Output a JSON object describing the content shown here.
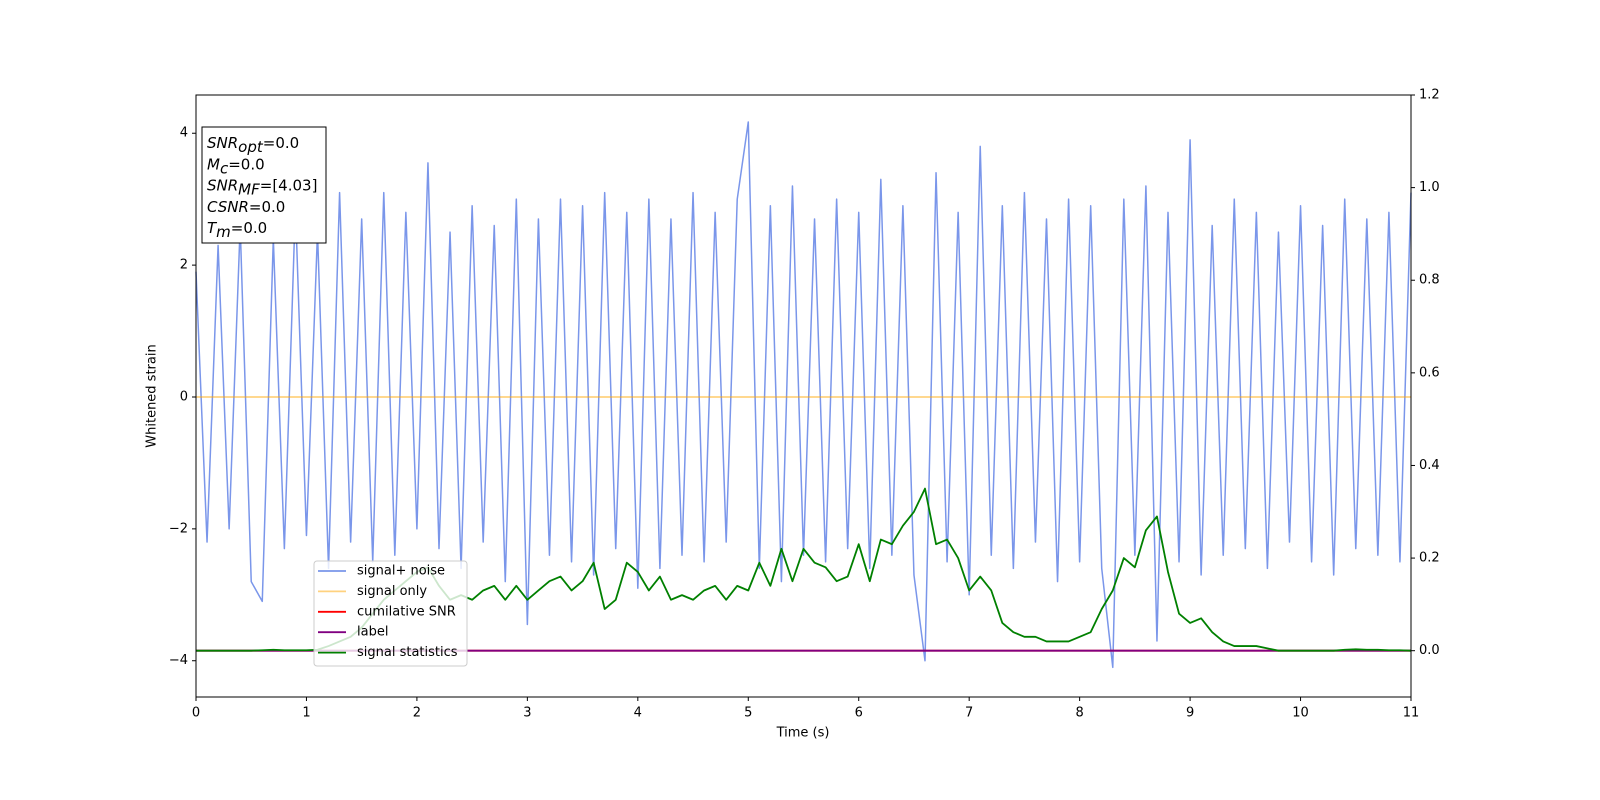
{
  "chart_data": {
    "type": "line",
    "xlabel": "Time (s)",
    "ylabel": "Whitened strain",
    "x": [
      0,
      0.1,
      0.2,
      0.3,
      0.4,
      0.5,
      0.6,
      0.7,
      0.8,
      0.9,
      1,
      1.1,
      1.2,
      1.3,
      1.4,
      1.5,
      1.6,
      1.7,
      1.8,
      1.9,
      2,
      2.1,
      2.2,
      2.3,
      2.4,
      2.5,
      2.6,
      2.7,
      2.8,
      2.9,
      3,
      3.1,
      3.2,
      3.3,
      3.4,
      3.5,
      3.6,
      3.7,
      3.8,
      3.9,
      4,
      4.1,
      4.2,
      4.3,
      4.4,
      4.5,
      4.6,
      4.7,
      4.8,
      4.9,
      5,
      5.1,
      5.2,
      5.3,
      5.4,
      5.5,
      5.6,
      5.7,
      5.8,
      5.9,
      6,
      6.1,
      6.2,
      6.3,
      6.4,
      6.5,
      6.6,
      6.7,
      6.8,
      6.9,
      7,
      7.1,
      7.2,
      7.3,
      7.4,
      7.5,
      7.6,
      7.7,
      7.8,
      7.9,
      8,
      8.1,
      8.2,
      8.3,
      8.4,
      8.5,
      8.6,
      8.7,
      8.8,
      8.9,
      9,
      9.1,
      9.2,
      9.3,
      9.4,
      9.5,
      9.6,
      9.7,
      9.8,
      9.9,
      10,
      10.1,
      10.2,
      10.3,
      10.4,
      10.5,
      10.6,
      10.7,
      10.8,
      10.9,
      11
    ],
    "series": [
      {
        "name": "signal+ noise",
        "color": "#4169e1",
        "alpha": 0.7,
        "values": [
          1.9,
          -2.2,
          2.3,
          -2.0,
          2.6,
          -2.8,
          -3.1,
          2.4,
          -2.3,
          2.9,
          -2.1,
          2.5,
          -2.6,
          3.1,
          -2.2,
          2.7,
          -2.5,
          3.1,
          -2.4,
          2.8,
          -2.0,
          3.55,
          -2.3,
          2.5,
          -2.6,
          2.9,
          -2.2,
          2.6,
          -2.8,
          3.0,
          -3.45,
          2.7,
          -2.4,
          3.0,
          -2.5,
          2.9,
          -2.7,
          3.1,
          -2.3,
          2.8,
          -2.9,
          3.0,
          -2.6,
          2.7,
          -2.4,
          3.1,
          -2.5,
          2.8,
          -2.2,
          3.0,
          4.17,
          -2.6,
          2.9,
          -2.8,
          3.2,
          -2.4,
          2.7,
          -2.5,
          3.0,
          -2.3,
          2.8,
          -2.6,
          3.3,
          -2.4,
          2.9,
          -2.7,
          -4.0,
          3.4,
          -2.5,
          2.8,
          -3.0,
          3.8,
          -2.4,
          2.9,
          -2.6,
          3.1,
          -2.2,
          2.7,
          -2.8,
          3.0,
          -2.5,
          2.9,
          -2.6,
          -4.1,
          3.0,
          -2.4,
          3.2,
          -3.7,
          2.8,
          -2.5,
          3.9,
          -2.7,
          2.6,
          -2.4,
          3.0,
          -2.3,
          2.8,
          -2.6,
          2.5,
          -2.2,
          2.9,
          -2.5,
          2.6,
          -2.7,
          3.0,
          -2.3,
          2.7,
          -2.4,
          2.8,
          -2.5,
          3.1
        ]
      },
      {
        "name": "signal only",
        "color": "#ffa500",
        "alpha": 0.5,
        "x": [
          0,
          11
        ],
        "values": [
          0,
          0
        ]
      },
      {
        "name": "cumilative SNR",
        "color": "#ff0000",
        "alpha": 1,
        "axis": "y2",
        "x": [
          0,
          11
        ],
        "values": [
          0,
          0
        ]
      },
      {
        "name": "label",
        "color": "#800080",
        "alpha": 1,
        "axis": "y2",
        "x": [
          0,
          11
        ],
        "values": [
          0,
          0
        ]
      },
      {
        "name": "signal statistics",
        "color": "#008000",
        "alpha": 1,
        "axis": "y2",
        "values": [
          0,
          0,
          0,
          0,
          0,
          0,
          0.001,
          0.002,
          0.001,
          0.001,
          0.001,
          0.002,
          0.01,
          0.02,
          0.03,
          0.05,
          0.08,
          0.11,
          0.13,
          0.15,
          0.17,
          0.18,
          0.14,
          0.11,
          0.12,
          0.11,
          0.13,
          0.14,
          0.11,
          0.14,
          0.11,
          0.13,
          0.15,
          0.16,
          0.13,
          0.15,
          0.19,
          0.09,
          0.11,
          0.19,
          0.17,
          0.13,
          0.16,
          0.11,
          0.12,
          0.11,
          0.13,
          0.14,
          0.11,
          0.14,
          0.13,
          0.19,
          0.14,
          0.22,
          0.15,
          0.22,
          0.19,
          0.18,
          0.15,
          0.16,
          0.23,
          0.15,
          0.24,
          0.23,
          0.27,
          0.3,
          0.35,
          0.23,
          0.24,
          0.2,
          0.13,
          0.16,
          0.13,
          0.06,
          0.04,
          0.03,
          0.03,
          0.02,
          0.02,
          0.02,
          0.03,
          0.04,
          0.09,
          0.13,
          0.2,
          0.18,
          0.26,
          0.29,
          0.17,
          0.08,
          0.06,
          0.07,
          0.04,
          0.02,
          0.01,
          0.01,
          0.01,
          0.005,
          0,
          0,
          0,
          0,
          0,
          0,
          0.002,
          0.003,
          0.002,
          0.002,
          0.001,
          0.001,
          0
        ]
      }
    ],
    "xlim": [
      0,
      11
    ],
    "xticks": [
      0,
      1,
      2,
      3,
      4,
      5,
      6,
      7,
      8,
      9,
      10,
      11
    ],
    "ylim": [
      -4.55,
      4.58
    ],
    "yticks": [
      {
        "value": -4,
        "label": "−4"
      },
      {
        "value": -2,
        "label": "−2"
      },
      0,
      2,
      4
    ],
    "y2lim": [
      -0.1,
      1.2
    ],
    "y2ticks": [
      {
        "value": 0,
        "label": "0.0"
      },
      {
        "value": 0.2,
        "label": "0.2"
      },
      {
        "value": 0.4,
        "label": "0.4"
      },
      {
        "value": 0.6,
        "label": "0.6"
      },
      {
        "value": 0.8,
        "label": "0.8"
      },
      {
        "value": 1.0,
        "label": "1.0"
      },
      {
        "value": 1.2,
        "label": "1.2"
      }
    ],
    "annotation": [
      {
        "text": "SNR",
        "sub": "opt",
        "value": "=0.0"
      },
      {
        "text": "M",
        "sub": "c",
        "value": "=0.0"
      },
      {
        "text": "SNR",
        "sub": "MF",
        "value": "=[4.03]"
      },
      {
        "text": "CSNR",
        "value": "=0.0"
      },
      {
        "text": "T",
        "sub": "m",
        "value": "=0.0"
      }
    ]
  }
}
